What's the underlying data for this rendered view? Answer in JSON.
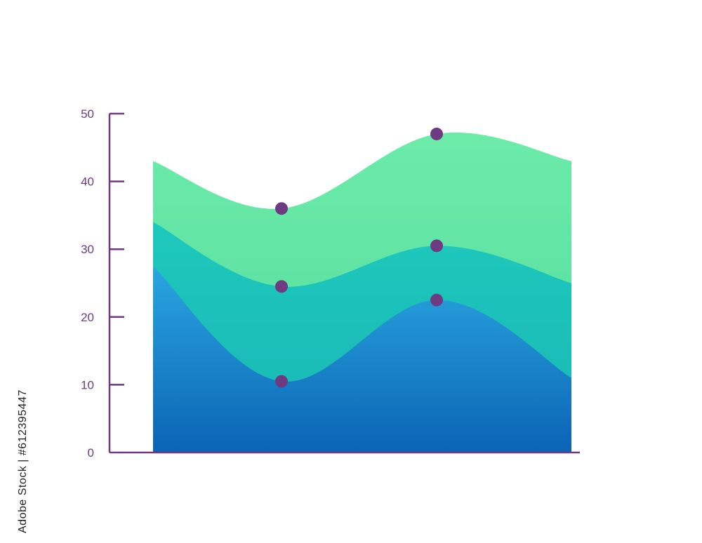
{
  "watermark": {
    "id_text": "Adobe Stock | #612395447"
  },
  "chart_data": {
    "type": "area",
    "stacked": true,
    "smoothed": true,
    "title": "",
    "xlabel": "",
    "ylabel": "",
    "ylim": [
      0,
      50
    ],
    "y_ticks": [
      0,
      10,
      20,
      30,
      40,
      50
    ],
    "x": [
      0,
      1,
      2,
      3
    ],
    "series": [
      {
        "values": [
          27.5,
          10.5,
          22.5,
          11
        ],
        "color_top": "#2aa6e0",
        "color_bottom": "#0a64b4",
        "markers_at": [
          1,
          2
        ]
      },
      {
        "values": [
          34,
          24.5,
          30.5,
          25
        ],
        "color_top": "#1ec8bc",
        "color_bottom": "#19b7b4",
        "markers_at": [
          1,
          2
        ]
      },
      {
        "values": [
          43,
          36,
          47,
          43
        ],
        "color_top": "#6ceba8",
        "color_bottom": "#52dba0",
        "markers_at": [
          1,
          2
        ]
      }
    ],
    "marker_color": "#6e3a82",
    "axis_color": "#6e3a82",
    "legend": "none",
    "grid": false
  }
}
